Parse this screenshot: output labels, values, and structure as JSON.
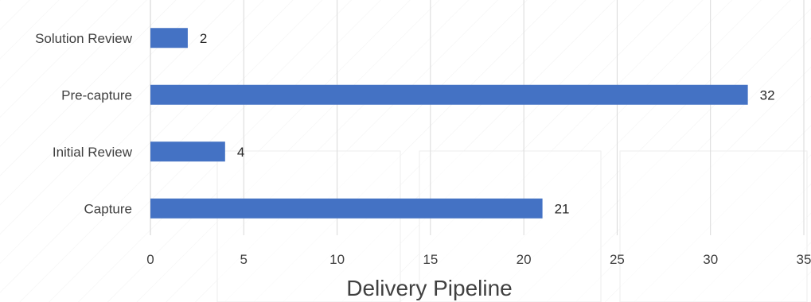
{
  "chart_data": {
    "type": "bar",
    "orientation": "horizontal",
    "categories": [
      "Solution Review",
      "Pre-capture",
      "Initial Review",
      "Capture"
    ],
    "values": [
      2,
      32,
      4,
      21
    ],
    "xlabel": "Delivery Pipeline",
    "xlim": [
      0,
      35
    ],
    "xticks": [
      0,
      5,
      10,
      15,
      20,
      25,
      30,
      35
    ],
    "grid": "vertical",
    "bar_color": "#4472C4",
    "data_labels": true,
    "legend": "none"
  }
}
